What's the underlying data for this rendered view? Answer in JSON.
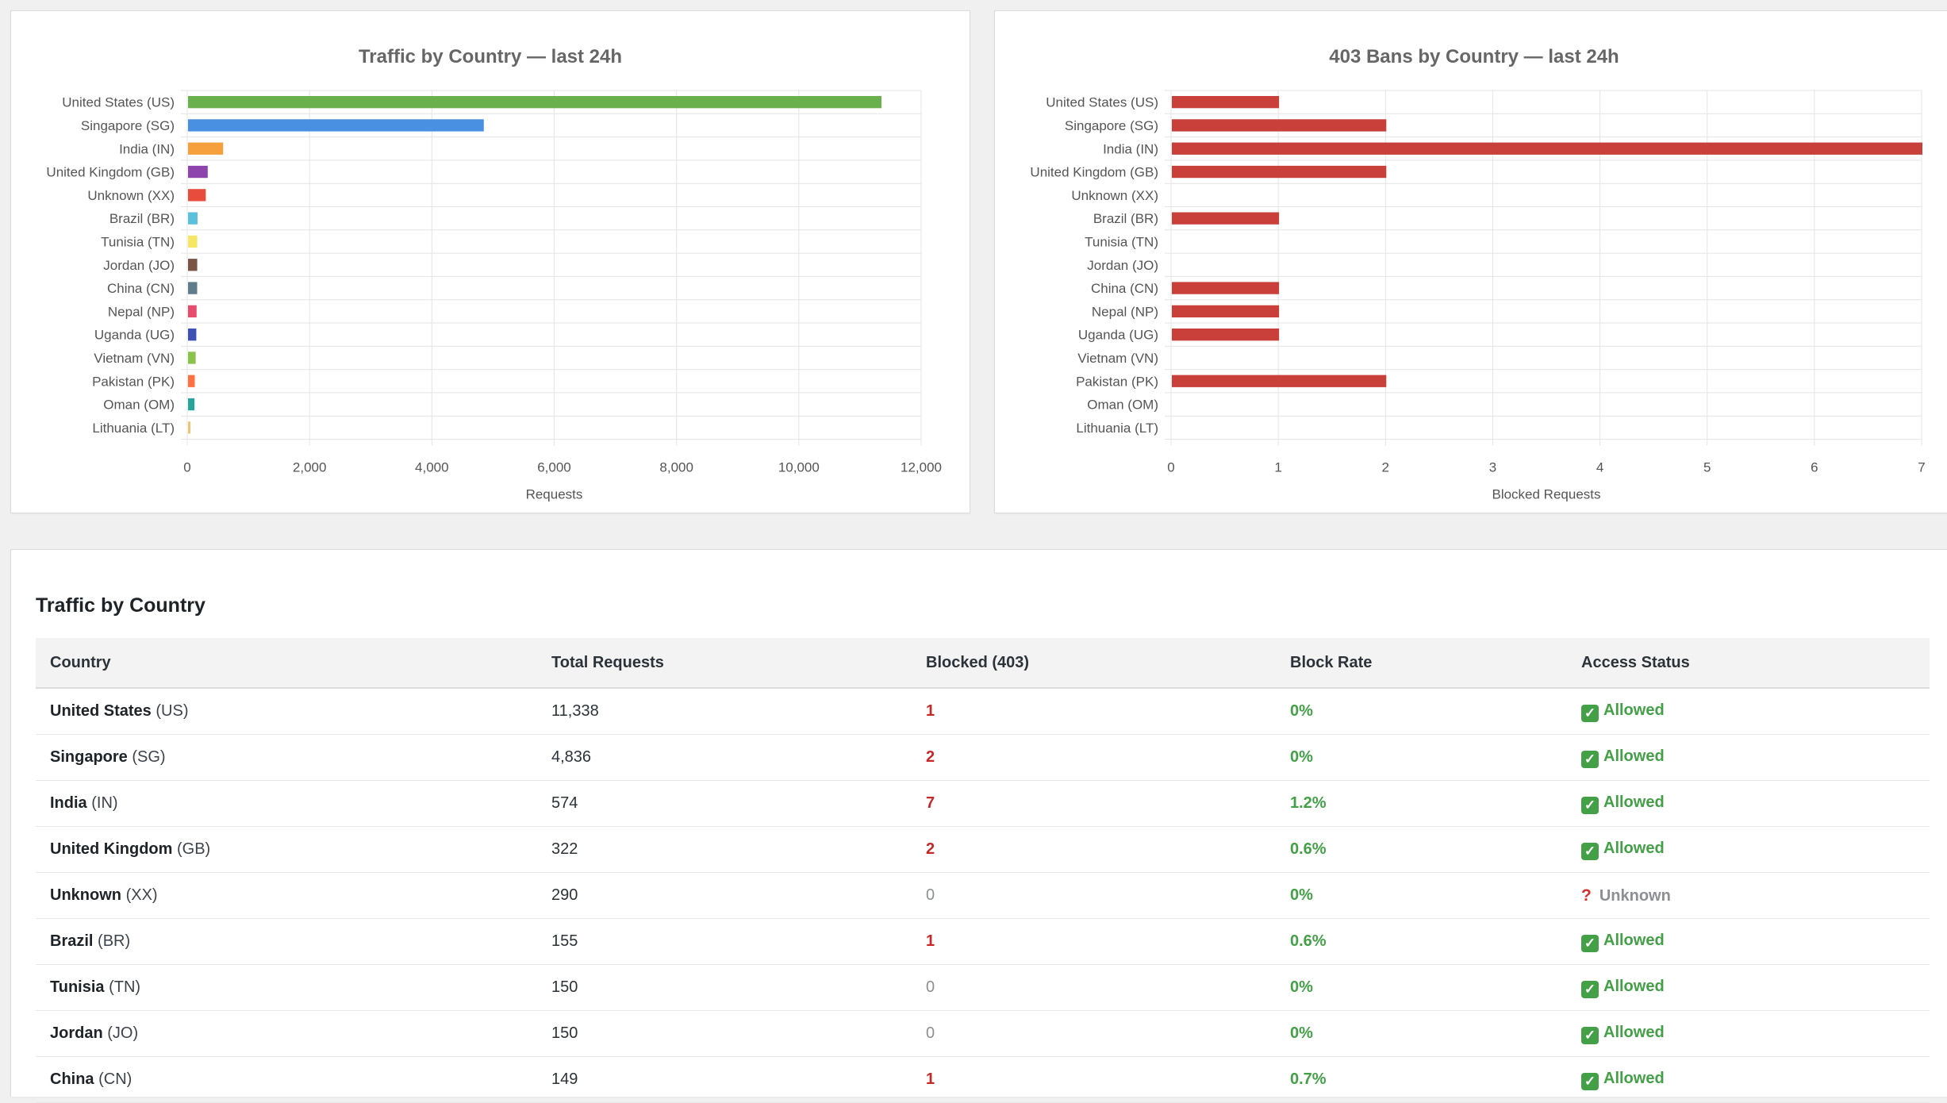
{
  "charts": [
    {
      "type": "bar",
      "orientation": "horizontal",
      "title": "Traffic by Country — last 24h",
      "xlabel": "Requests",
      "xlim": [
        0,
        12000
      ],
      "ticks": [
        0,
        2000,
        4000,
        6000,
        8000,
        10000,
        12000
      ],
      "tick_labels": [
        "0",
        "2,000",
        "4,000",
        "6,000",
        "8,000",
        "10,000",
        "12,000"
      ],
      "categories": [
        "United States (US)",
        "Singapore (SG)",
        "India (IN)",
        "United Kingdom (GB)",
        "Unknown (XX)",
        "Brazil (BR)",
        "Tunisia (TN)",
        "Jordan (JO)",
        "China (CN)",
        "Nepal (NP)",
        "Uganda (UG)",
        "Vietnam (VN)",
        "Pakistan (PK)",
        "Oman (OM)",
        "Lithuania (LT)"
      ],
      "values": [
        11338,
        4836,
        574,
        322,
        290,
        155,
        150,
        150,
        149,
        140,
        135,
        125,
        110,
        105,
        40
      ],
      "colors": [
        "#6ab04c",
        "#4a90e2",
        "#f5a03c",
        "#8e44ad",
        "#e74c3c",
        "#5bc0de",
        "#f5e663",
        "#795548",
        "#607d8b",
        "#e84c6c",
        "#3f51b5",
        "#8bc34a",
        "#ff7043",
        "#26a69a",
        "#e6c878"
      ]
    },
    {
      "type": "bar",
      "orientation": "horizontal",
      "title": "403 Bans by Country — last 24h",
      "xlabel": "Blocked Requests",
      "xlim": [
        0,
        7
      ],
      "ticks": [
        0,
        1,
        2,
        3,
        4,
        5,
        6,
        7
      ],
      "tick_labels": [
        "0",
        "1",
        "2",
        "3",
        "4",
        "5",
        "6",
        "7"
      ],
      "categories": [
        "United States (US)",
        "Singapore (SG)",
        "India (IN)",
        "United Kingdom (GB)",
        "Unknown (XX)",
        "Brazil (BR)",
        "Tunisia (TN)",
        "Jordan (JO)",
        "China (CN)",
        "Nepal (NP)",
        "Uganda (UG)",
        "Vietnam (VN)",
        "Pakistan (PK)",
        "Oman (OM)",
        "Lithuania (LT)"
      ],
      "values": [
        1,
        2,
        7,
        2,
        0,
        1,
        0,
        0,
        1,
        1,
        1,
        0,
        2,
        0,
        0
      ],
      "colors": [
        "#c9403a"
      ]
    }
  ],
  "table": {
    "title": "Traffic by Country",
    "headers": [
      "Country",
      "Total Requests",
      "Blocked (403)",
      "Block Rate",
      "Access Status"
    ],
    "rows": [
      {
        "name": "United States",
        "code": "(US)",
        "total": "11,338",
        "blocked": "1",
        "rate": "0%",
        "status": "Allowed"
      },
      {
        "name": "Singapore",
        "code": "(SG)",
        "total": "4,836",
        "blocked": "2",
        "rate": "0%",
        "status": "Allowed"
      },
      {
        "name": "India",
        "code": "(IN)",
        "total": "574",
        "blocked": "7",
        "rate": "1.2%",
        "status": "Allowed"
      },
      {
        "name": "United Kingdom",
        "code": "(GB)",
        "total": "322",
        "blocked": "2",
        "rate": "0.6%",
        "status": "Allowed"
      },
      {
        "name": "Unknown",
        "code": "(XX)",
        "total": "290",
        "blocked": "0",
        "rate": "0%",
        "status": "Unknown"
      },
      {
        "name": "Brazil",
        "code": "(BR)",
        "total": "155",
        "blocked": "1",
        "rate": "0.6%",
        "status": "Allowed"
      },
      {
        "name": "Tunisia",
        "code": "(TN)",
        "total": "150",
        "blocked": "0",
        "rate": "0%",
        "status": "Allowed"
      },
      {
        "name": "Jordan",
        "code": "(JO)",
        "total": "150",
        "blocked": "0",
        "rate": "0%",
        "status": "Allowed"
      },
      {
        "name": "China",
        "code": "(CN)",
        "total": "149",
        "blocked": "1",
        "rate": "0.7%",
        "status": "Allowed"
      }
    ]
  },
  "colors": {
    "allowed": "#43a047",
    "blocked": "#c62828",
    "unknown": "#8c8f94"
  },
  "icons": {
    "allowed": "check-mark-icon",
    "unknown": "question-mark-icon"
  }
}
